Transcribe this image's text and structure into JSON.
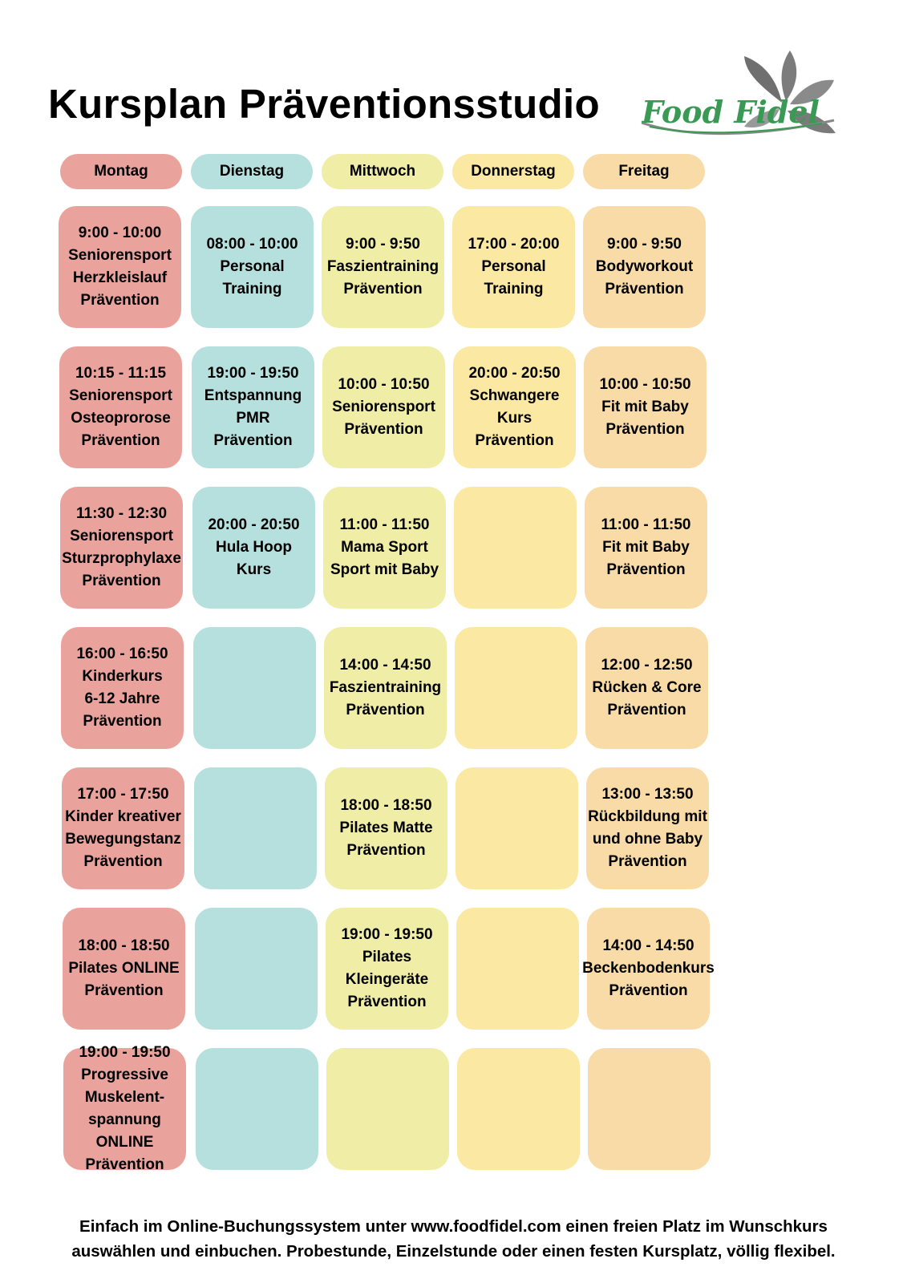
{
  "title": "Kursplan Präventionsstudio",
  "logo": {
    "text": "Food Fidel",
    "icon": "leaf-icon"
  },
  "colors": {
    "monday": "#e9a39c",
    "tuesday": "#b5e0dd",
    "wednesday": "#f0eda7",
    "thursday": "#fbe8a3",
    "friday": "#f8dba7"
  },
  "days": [
    "Montag",
    "Dienstag",
    "Mittwoch",
    "Donnerstag",
    "Freitag"
  ],
  "grid": [
    [
      [
        "9:00 - 10:00",
        "Seniorensport",
        "Herzkleislauf",
        "Prävention"
      ],
      [
        "08:00 - 10:00",
        "Personal",
        "Training"
      ],
      [
        "9:00 - 9:50",
        "Faszientraining",
        "Prävention"
      ],
      [
        "17:00 - 20:00",
        "Personal",
        "Training"
      ],
      [
        "9:00 - 9:50",
        "Bodyworkout",
        "Prävention"
      ]
    ],
    [
      [
        "10:15 - 11:15",
        "Seniorensport",
        "Osteoprorose",
        "Prävention"
      ],
      [
        "19:00 - 19:50",
        "Entspannung",
        "PMR",
        "Prävention"
      ],
      [
        "10:00 - 10:50",
        "Seniorensport",
        "Prävention"
      ],
      [
        "20:00 - 20:50",
        "Schwangere",
        "Kurs",
        "Prävention"
      ],
      [
        "10:00 - 10:50",
        "Fit mit Baby",
        "Prävention"
      ]
    ],
    [
      [
        "11:30 - 12:30",
        "Seniorensport",
        "Sturzprophylaxe",
        "Prävention"
      ],
      [
        "20:00 - 20:50",
        "Hula Hoop",
        "Kurs"
      ],
      [
        "11:00 - 11:50",
        "Mama Sport",
        "Sport mit Baby"
      ],
      [],
      [
        "11:00 - 11:50",
        "Fit mit Baby",
        "Prävention"
      ]
    ],
    [
      [
        "16:00 - 16:50",
        "Kinderkurs",
        "6-12 Jahre",
        "Prävention"
      ],
      [],
      [
        "14:00 - 14:50",
        "Faszientraining",
        "Prävention"
      ],
      [],
      [
        "12:00 - 12:50",
        "Rücken & Core",
        "Prävention"
      ]
    ],
    [
      [
        "17:00 - 17:50",
        "Kinder kreativer",
        "Bewegungstanz",
        "Prävention"
      ],
      [],
      [
        "18:00 - 18:50",
        "Pilates Matte",
        "Prävention"
      ],
      [],
      [
        "13:00 - 13:50",
        "Rückbildung mit",
        "und ohne Baby",
        "Prävention"
      ]
    ],
    [
      [
        "18:00 - 18:50",
        "Pilates ONLINE",
        "Prävention"
      ],
      [],
      [
        "19:00 - 19:50",
        "Pilates",
        "Kleingeräte",
        "Prävention"
      ],
      [],
      [
        "14:00 - 14:50",
        "Beckenbodenkurs",
        "Prävention"
      ]
    ],
    [
      [
        "19:00 - 19:50",
        "Progressive",
        "Muskelent-",
        "spannung",
        "ONLINE",
        "Prävention"
      ],
      [],
      [],
      [],
      []
    ]
  ],
  "footer": {
    "line1": "Einfach im Online-Buchungssystem unter www.foodfidel.com einen freien Platz im Wunschkurs",
    "line2": "auswählen und einbuchen. Probestunde, Einzelstunde oder einen festen Kursplatz, völlig flexibel."
  }
}
